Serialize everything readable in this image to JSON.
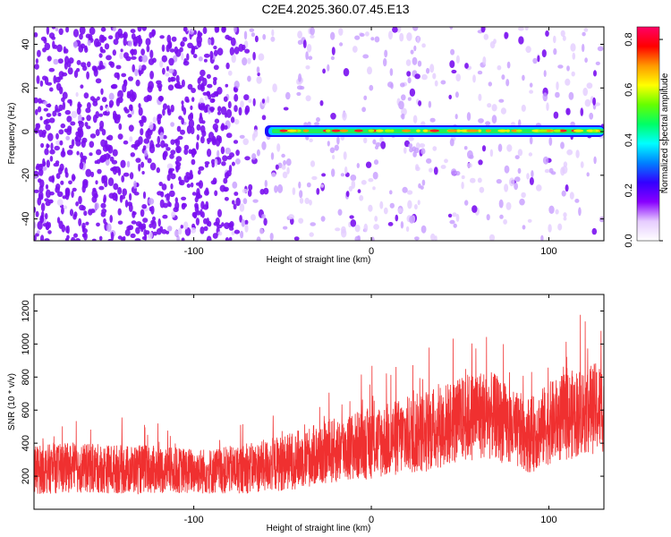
{
  "title": "C2E4.2025.360.07.45.E13",
  "colors": {
    "snr_line": "#f03030",
    "sg_base": "#7a00ee",
    "frame": "#000000"
  },
  "chart_data": [
    {
      "type": "heatmap",
      "name": "spectrogram",
      "title": "",
      "xlabel": "Height of straight line (km)",
      "ylabel": "Frequency (Hz)",
      "xlim": [
        -190,
        131
      ],
      "ylim": [
        -50,
        48
      ],
      "xticks": [
        -100,
        0,
        100
      ],
      "xtick_labels": [
        "-100",
        "0",
        "100"
      ],
      "yticks": [
        -40,
        -20,
        0,
        20,
        40
      ],
      "ytick_labels": [
        "-40",
        "-20",
        "0",
        "20",
        "40"
      ],
      "signal": {
        "description_x_range_km": [
          -60,
          131
        ],
        "center_frequency_hz": 0,
        "start_km": -60
      },
      "colorbar": {
        "label": "Normalized spectral amplitude",
        "range": [
          0,
          0.85
        ],
        "ticks": [
          0.0,
          0.2,
          0.4,
          0.6,
          0.8
        ],
        "tick_labels": [
          "0.0",
          "0.2",
          "0.4",
          "0.6",
          "0.8"
        ],
        "colormap": [
          "#ffffff",
          "#e6ccff",
          "#8800ff",
          "#3300ff",
          "#0080ff",
          "#00ffff",
          "#00ff66",
          "#66ff00",
          "#ffff00",
          "#ff9900",
          "#ff0000",
          "#ff0066"
        ]
      }
    },
    {
      "type": "line",
      "name": "snr",
      "title": "",
      "xlabel": "Height of straight line (km)",
      "ylabel": "SNR (10 * v/v)",
      "xlim": [
        -190,
        131
      ],
      "ylim": [
        0,
        1300
      ],
      "xticks": [
        -100,
        0,
        100
      ],
      "xtick_labels": [
        "-100",
        "0",
        "100"
      ],
      "yticks": [
        200,
        400,
        600,
        800,
        1000,
        1200
      ],
      "ytick_labels": [
        "200",
        "400",
        "600",
        "800",
        "1000",
        "1200"
      ],
      "series": [
        {
          "name": "SNR",
          "x": [
            -190,
            -170,
            -150,
            -130,
            -110,
            -90,
            -70,
            -50,
            -30,
            -10,
            10,
            30,
            50,
            60,
            70,
            80,
            90,
            100,
            110,
            120,
            131
          ],
          "mean": [
            240,
            250,
            245,
            240,
            235,
            230,
            245,
            280,
            330,
            380,
            420,
            470,
            540,
            580,
            560,
            480,
            450,
            520,
            560,
            600,
            620
          ],
          "spread": [
            150,
            150,
            150,
            150,
            140,
            140,
            150,
            170,
            190,
            210,
            230,
            250,
            260,
            280,
            260,
            240,
            230,
            250,
            270,
            270,
            280
          ]
        }
      ]
    }
  ]
}
